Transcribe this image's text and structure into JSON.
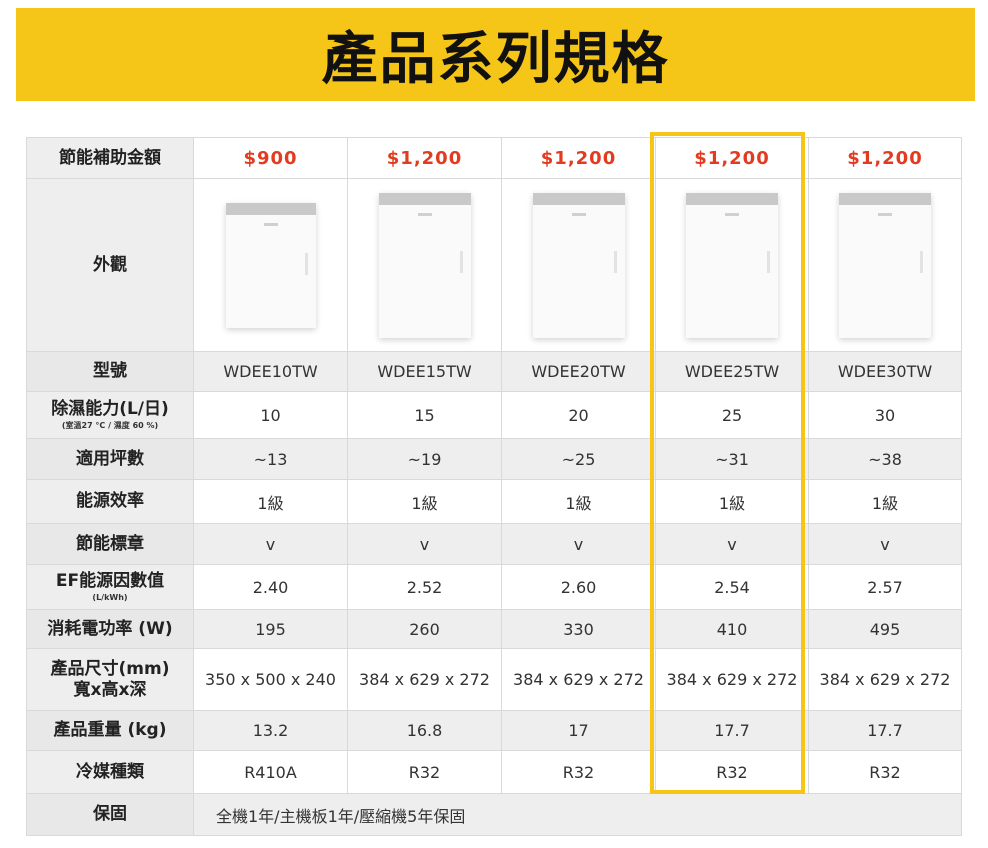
{
  "header": {
    "title": "產品系列規格"
  },
  "labels": {
    "subsidy": "節能補助金額",
    "appearance": "外觀",
    "model": "型號",
    "capacity": "除濕能力(L/日)",
    "capacity_note": "(室溫27 °C / 濕度 60 %)",
    "area": "適用坪數",
    "efficiency": "能源效率",
    "label": "節能標章",
    "ef": "EF能源因數值",
    "ef_unit": "(L/kWh)",
    "power": "消耗電功率 (W)",
    "size_line1": "產品尺寸(mm)",
    "size_line2": "寬x高x深",
    "weight": "產品重量 (kg)",
    "refrigerant": "冷媒種類",
    "warranty": "保固"
  },
  "products": [
    {
      "price": "$900",
      "model": "WDEE10TW",
      "capacity": "10",
      "area": "~13",
      "efficiency": "1級",
      "label": "v",
      "ef": "2.40",
      "power": "195",
      "size": "350 x 500 x 240",
      "weight": "13.2",
      "refrigerant": "R410A"
    },
    {
      "price": "$1,200",
      "model": "WDEE15TW",
      "capacity": "15",
      "area": "~19",
      "efficiency": "1級",
      "label": "v",
      "ef": "2.52",
      "power": "260",
      "size": "384 x 629 x 272",
      "weight": "16.8",
      "refrigerant": "R32"
    },
    {
      "price": "$1,200",
      "model": "WDEE20TW",
      "capacity": "20",
      "area": "~25",
      "efficiency": "1級",
      "label": "v",
      "ef": "2.60",
      "power": "330",
      "size": "384 x 629 x 272",
      "weight": "17",
      "refrigerant": "R32"
    },
    {
      "price": "$1,200",
      "model": "WDEE25TW",
      "capacity": "25",
      "area": "~31",
      "efficiency": "1級",
      "label": "v",
      "ef": "2.54",
      "power": "410",
      "size": "384 x 629 x 272",
      "weight": "17.7",
      "refrigerant": "R32"
    },
    {
      "price": "$1,200",
      "model": "WDEE30TW",
      "capacity": "30",
      "area": "~38",
      "efficiency": "1級",
      "label": "v",
      "ef": "2.57",
      "power": "495",
      "size": "384 x 629 x 272",
      "weight": "17.7",
      "refrigerant": "R32"
    }
  ],
  "warranty_text": "全機1年/主機板1年/壓縮機5年保固",
  "colors": {
    "banner": "#f5c518",
    "price": "#e23b1f",
    "highlight": "#f5c518"
  },
  "highlighted_column": "WDEE25TW"
}
